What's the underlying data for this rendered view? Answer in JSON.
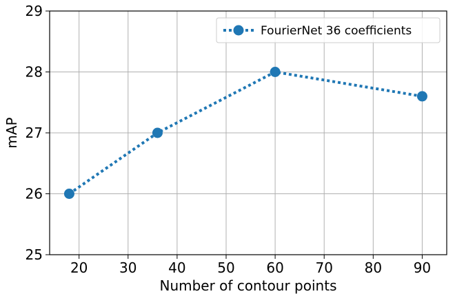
{
  "chart_data": {
    "type": "line",
    "title": "",
    "xlabel": "Number of contour points",
    "ylabel": "mAP",
    "xlim": [
      14,
      95
    ],
    "ylim": [
      25,
      29
    ],
    "xticks": [
      20,
      30,
      40,
      50,
      60,
      70,
      80,
      90
    ],
    "yticks": [
      25,
      26,
      27,
      28,
      29
    ],
    "grid": true,
    "legend_position": "top-right",
    "series": [
      {
        "name": "FourierNet 36 coefficients",
        "color": "#1f77b4",
        "line_style": "dotted",
        "marker": "circle",
        "x": [
          18,
          36,
          60,
          90
        ],
        "y": [
          26.0,
          27.0,
          28.0,
          27.6
        ]
      }
    ]
  }
}
